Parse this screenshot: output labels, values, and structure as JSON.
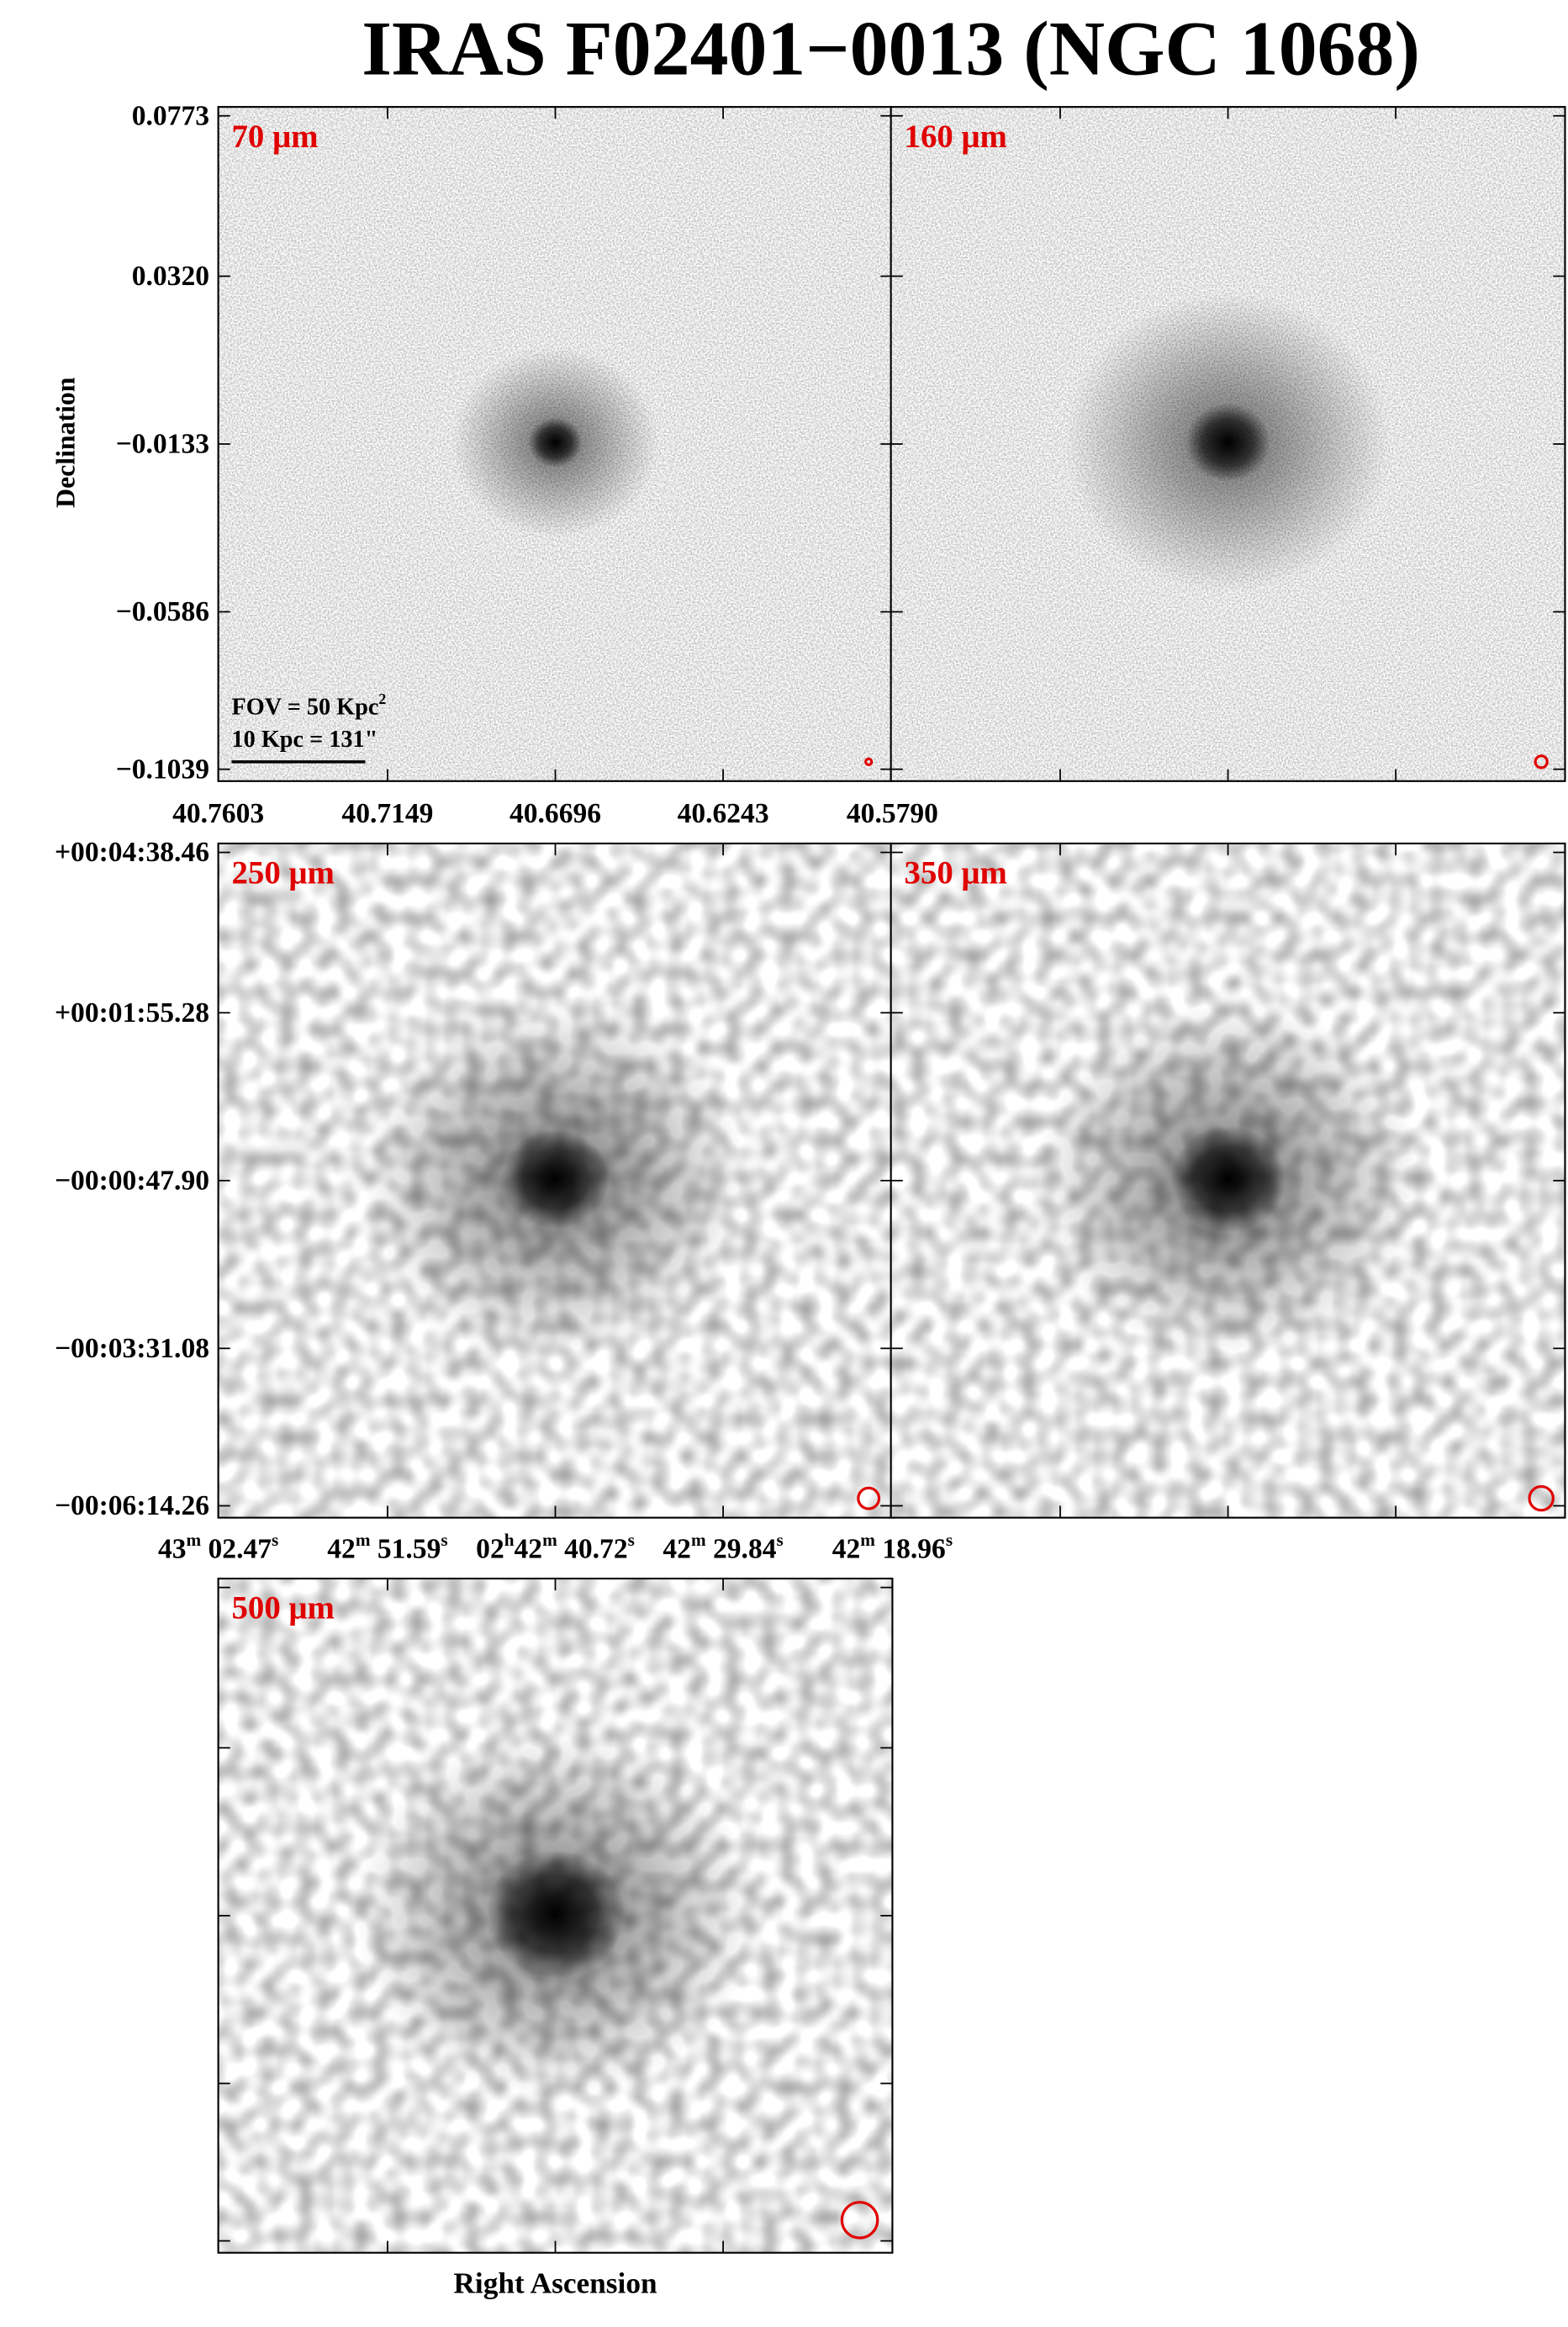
{
  "title": "IRAS F02401−0013 (NGC 1068)",
  "y_axis_label": "Declination",
  "x_axis_label": "Right Ascension",
  "panels": [
    {
      "label": "70 μm"
    },
    {
      "label": "160 μm"
    },
    {
      "label": "250 μm"
    },
    {
      "label": "350 μm"
    },
    {
      "label": "500 μm"
    }
  ],
  "top_yticks": [
    "0.0773",
    "0.0320",
    "−0.0133",
    "−0.0586",
    "−0.1039"
  ],
  "top_xticks": [
    "40.7603",
    "40.7149",
    "40.6696",
    "40.6243",
    "40.5790"
  ],
  "mid_yticks": [
    "+00:04:38.46",
    "+00:01:55.28",
    "−00:00:47.90",
    "−00:03:31.08",
    "−00:06:14.26"
  ],
  "mid_xticks": [
    {
      "parts": [
        "43",
        "m",
        " 02.47",
        "s"
      ]
    },
    {
      "parts": [
        "42",
        "m",
        " 51.59",
        "s"
      ]
    },
    {
      "parts": [
        "02",
        "h",
        "42",
        "m",
        " 40.72",
        "s"
      ]
    },
    {
      "parts": [
        "42",
        "m",
        " 29.84",
        "s"
      ]
    },
    {
      "parts": [
        "42",
        "m",
        " 18.96",
        "s"
      ]
    }
  ],
  "annotation": {
    "fov": "FOV = 50 Kpc",
    "fov_sup": "2",
    "scale": "10 Kpc = 131\""
  }
}
